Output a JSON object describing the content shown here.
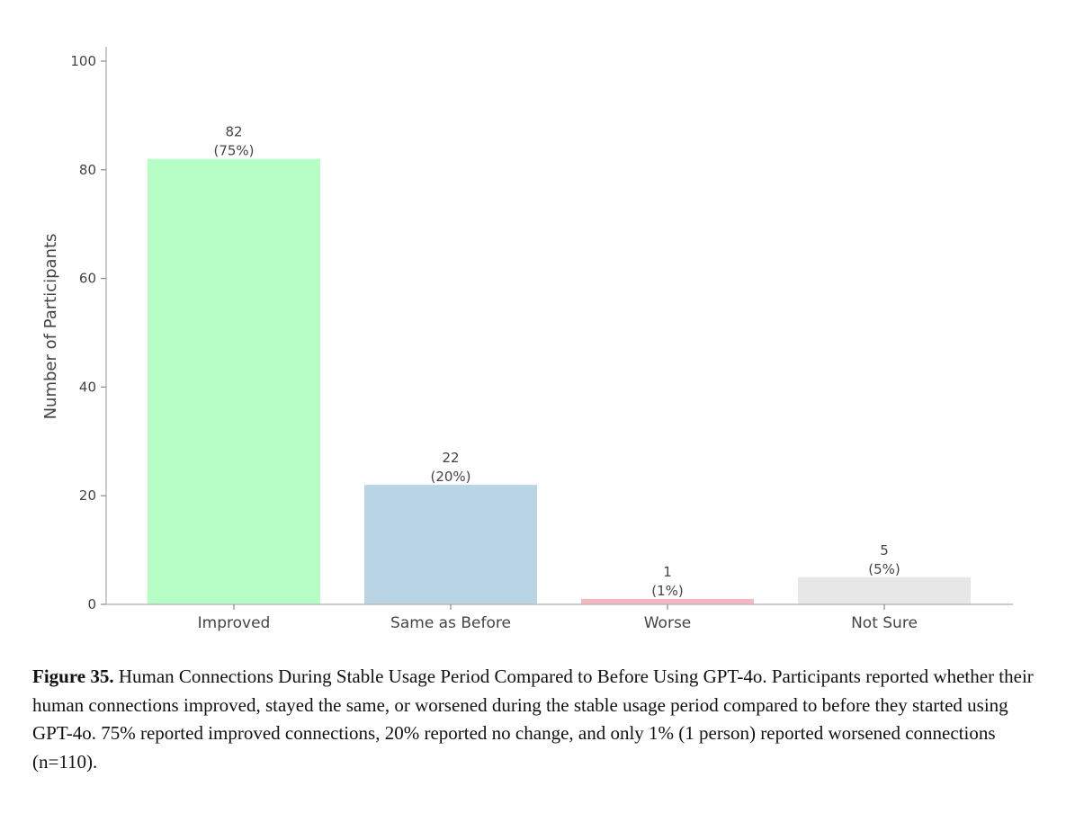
{
  "chart_data": {
    "type": "bar",
    "categories": [
      "Improved",
      "Same as Before",
      "Worse",
      "Not Sure"
    ],
    "values": [
      82,
      22,
      1,
      5
    ],
    "value_labels": [
      "82",
      "22",
      "1",
      "5"
    ],
    "percent_labels": [
      "(75%)",
      "(20%)",
      "(1%)",
      "(5%)"
    ],
    "colors": [
      "#b5fec5",
      "#b8d4e5",
      "#f5b8c0",
      "#e7e7e7"
    ],
    "title": "",
    "xlabel": "",
    "ylabel": "Number of Participants",
    "ylim": [
      0,
      100
    ],
    "yticks": [
      "0",
      "20",
      "40",
      "60",
      "80",
      "100"
    ],
    "grid": false,
    "legend": "none"
  },
  "caption": {
    "label": "Figure 35.",
    "text": " Human Connections During Stable Usage Period Compared to Before Using GPT-4o. Participants reported whether their human connections improved, stayed the same, or worsened during the stable usage period compared to before they started using GPT-4o. 75% reported improved connections, 20% reported no change, and only 1% (1 person) reported worsened connections (n=110)."
  }
}
